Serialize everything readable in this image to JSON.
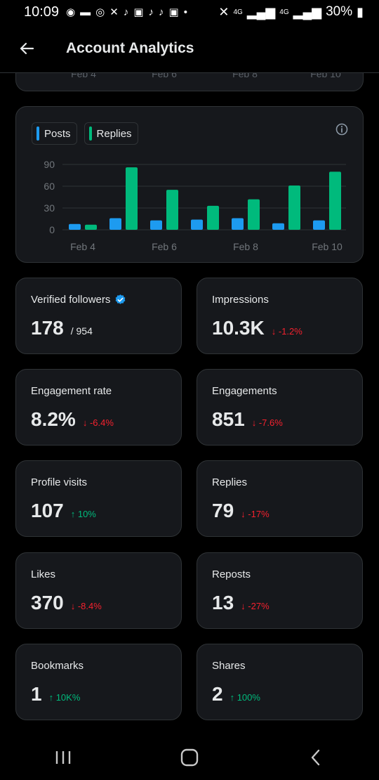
{
  "status_bar": {
    "time": "10:09",
    "battery": "30%",
    "network_label_1": "4G",
    "network_label_2": "4G",
    "notification_icons": [
      "app-icon",
      "message-icon",
      "chat-icon",
      "x-icon",
      "tiktok-icon",
      "image-icon",
      "tiktok-icon",
      "tiktok-icon",
      "image-icon",
      "dot-icon"
    ]
  },
  "header": {
    "title": "Account Analytics"
  },
  "previous_chart": {
    "x_ticks": [
      "Feb 4",
      "Feb 6",
      "Feb 8",
      "Feb 10"
    ]
  },
  "legend": [
    {
      "label": "Posts",
      "color": "#1d9bf0"
    },
    {
      "label": "Replies",
      "color": "#00ba7c"
    }
  ],
  "chart_data": {
    "type": "bar",
    "categories": [
      "Feb 4",
      "Feb 5",
      "Feb 6",
      "Feb 7",
      "Feb 8",
      "Feb 9",
      "Feb 10"
    ],
    "x_tick_labels": [
      "Feb 4",
      "",
      "Feb 6",
      "",
      "Feb 8",
      "",
      "Feb 10"
    ],
    "series": [
      {
        "name": "Posts",
        "color": "#1d9bf0",
        "values": [
          8,
          16,
          13,
          14,
          16,
          9,
          13
        ]
      },
      {
        "name": "Replies",
        "color": "#00ba7c",
        "values": [
          7,
          86,
          55,
          33,
          42,
          61,
          80
        ]
      }
    ],
    "y_ticks": [
      0,
      30,
      60,
      90
    ],
    "ylim": [
      0,
      90
    ],
    "grid": true,
    "legend_position": "top-left"
  },
  "metrics": [
    {
      "label": "Verified followers",
      "value": "178",
      "sub": "/ 954",
      "change": "",
      "direction": "none",
      "verified": true
    },
    {
      "label": "Impressions",
      "value": "10.3K",
      "sub": "",
      "change": "-1.2%",
      "direction": "down"
    },
    {
      "label": "Engagement rate",
      "value": "8.2%",
      "sub": "",
      "change": "-6.4%",
      "direction": "down"
    },
    {
      "label": "Engagements",
      "value": "851",
      "sub": "",
      "change": "-7.6%",
      "direction": "down"
    },
    {
      "label": "Profile visits",
      "value": "107",
      "sub": "",
      "change": "10%",
      "direction": "up"
    },
    {
      "label": "Replies",
      "value": "79",
      "sub": "",
      "change": "-17%",
      "direction": "down"
    },
    {
      "label": "Likes",
      "value": "370",
      "sub": "",
      "change": "-8.4%",
      "direction": "down"
    },
    {
      "label": "Reposts",
      "value": "13",
      "sub": "",
      "change": "-27%",
      "direction": "down"
    },
    {
      "label": "Bookmarks",
      "value": "1",
      "sub": "",
      "change": "10K%",
      "direction": "up"
    },
    {
      "label": "Shares",
      "value": "2",
      "sub": "",
      "change": "100%",
      "direction": "up"
    }
  ],
  "colors": {
    "background": "#000000",
    "card": "#16181c",
    "border": "#2f3336",
    "text": "#e7e9ea",
    "muted": "#71767b",
    "up": "#00ba7c",
    "down": "#f4212e",
    "verified": "#1d9bf0"
  }
}
